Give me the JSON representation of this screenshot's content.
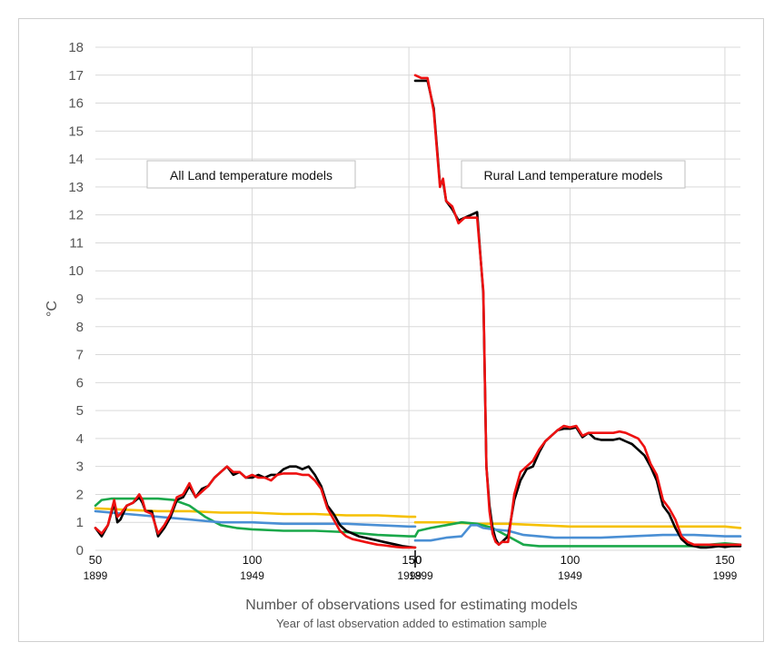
{
  "chart_data": {
    "type": "line",
    "ylabel": "°C",
    "xlabel": "Number of observations used for estimating models",
    "xlabel_secondary": "Year of last observation added to estimation sample",
    "ylim": [
      0,
      18
    ],
    "yticks": [
      0,
      1,
      2,
      3,
      4,
      5,
      6,
      7,
      8,
      9,
      10,
      11,
      12,
      13,
      14,
      15,
      16,
      17,
      18
    ],
    "grid": true,
    "legend": "none",
    "colors": {
      "black": "#000000",
      "red": "#ee1111",
      "yellow": "#f5c000",
      "green": "#1aa84a",
      "blue": "#4a8fd4",
      "grid": "#d9d9d9",
      "frame": "#d0d0d0"
    },
    "panels": [
      {
        "title": "All Land temperature models",
        "xlim": [
          50,
          152
        ],
        "xticks": [
          {
            "value": 50,
            "label": "50",
            "year": "1899"
          },
          {
            "value": 100,
            "label": "100",
            "year": "1949"
          },
          {
            "value": 150,
            "label": "150",
            "year": "1999"
          }
        ],
        "series": [
          {
            "name": "black",
            "color": "#000000",
            "x": [
              50,
              52,
              54,
              56,
              57,
              58,
              60,
              62,
              64,
              65,
              66,
              68,
              70,
              72,
              74,
              76,
              78,
              80,
              82,
              84,
              86,
              88,
              90,
              92,
              94,
              96,
              98,
              100,
              102,
              104,
              106,
              108,
              110,
              112,
              114,
              116,
              118,
              120,
              122,
              124,
              126,
              128,
              130,
              132,
              134,
              136,
              138,
              140,
              142,
              144,
              146,
              148,
              150,
              152
            ],
            "y": [
              0.8,
              0.5,
              0.9,
              1.7,
              1.0,
              1.1,
              1.6,
              1.7,
              1.9,
              1.7,
              1.4,
              1.4,
              0.5,
              0.8,
              1.2,
              1.8,
              1.9,
              2.3,
              1.9,
              2.2,
              2.3,
              2.6,
              2.8,
              3.0,
              2.7,
              2.8,
              2.6,
              2.6,
              2.7,
              2.6,
              2.7,
              2.7,
              2.9,
              3.0,
              3.0,
              2.9,
              3.0,
              2.7,
              2.3,
              1.6,
              1.3,
              0.9,
              0.7,
              0.6,
              0.5,
              0.45,
              0.4,
              0.35,
              0.3,
              0.25,
              0.2,
              0.15,
              0.12,
              0.1
            ]
          },
          {
            "name": "red",
            "color": "#ee1111",
            "x": [
              50,
              52,
              54,
              56,
              57,
              58,
              60,
              62,
              64,
              65,
              66,
              68,
              70,
              72,
              74,
              76,
              78,
              80,
              82,
              84,
              86,
              88,
              90,
              92,
              94,
              96,
              98,
              100,
              102,
              104,
              106,
              108,
              110,
              112,
              114,
              116,
              118,
              120,
              122,
              124,
              126,
              128,
              130,
              132,
              134,
              136,
              138,
              140,
              142,
              144,
              146,
              148,
              150,
              152
            ],
            "y": [
              0.8,
              0.6,
              0.9,
              1.8,
              1.2,
              1.3,
              1.6,
              1.7,
              2.0,
              1.8,
              1.4,
              1.3,
              0.6,
              0.9,
              1.3,
              1.9,
              2.0,
              2.4,
              1.9,
              2.1,
              2.3,
              2.6,
              2.8,
              3.0,
              2.8,
              2.8,
              2.6,
              2.7,
              2.6,
              2.6,
              2.5,
              2.7,
              2.75,
              2.75,
              2.75,
              2.7,
              2.7,
              2.5,
              2.2,
              1.5,
              1.1,
              0.7,
              0.5,
              0.4,
              0.35,
              0.3,
              0.25,
              0.2,
              0.18,
              0.15,
              0.12,
              0.1,
              0.1,
              0.1
            ]
          },
          {
            "name": "yellow",
            "color": "#f5c000",
            "x": [
              50,
              60,
              70,
              80,
              90,
              100,
              110,
              120,
              130,
              140,
              150,
              152
            ],
            "y": [
              1.5,
              1.45,
              1.4,
              1.4,
              1.35,
              1.35,
              1.3,
              1.3,
              1.25,
              1.25,
              1.2,
              1.2
            ]
          },
          {
            "name": "green",
            "color": "#1aa84a",
            "x": [
              50,
              52,
              55,
              60,
              65,
              70,
              75,
              80,
              85,
              90,
              95,
              100,
              110,
              120,
              130,
              140,
              150,
              152
            ],
            "y": [
              1.6,
              1.8,
              1.85,
              1.85,
              1.85,
              1.85,
              1.8,
              1.6,
              1.2,
              0.9,
              0.8,
              0.75,
              0.7,
              0.7,
              0.65,
              0.55,
              0.5,
              0.5
            ]
          },
          {
            "name": "blue",
            "color": "#4a8fd4",
            "x": [
              50,
              55,
              60,
              65,
              70,
              75,
              80,
              85,
              90,
              95,
              100,
              110,
              120,
              130,
              140,
              150,
              152
            ],
            "y": [
              1.4,
              1.35,
              1.3,
              1.25,
              1.2,
              1.15,
              1.1,
              1.05,
              1.0,
              1.0,
              1.0,
              0.95,
              0.95,
              0.95,
              0.9,
              0.85,
              0.85
            ]
          }
        ]
      },
      {
        "title": "Rural Land temperature models",
        "xlim": [
          50,
          155
        ],
        "xticks": [
          {
            "value": 50,
            "label": "50",
            "year": "1899"
          },
          {
            "value": 100,
            "label": "100",
            "year": "1949"
          },
          {
            "value": 150,
            "label": "150",
            "year": "1999"
          }
        ],
        "series": [
          {
            "name": "black",
            "color": "#000000",
            "x": [
              50,
              52,
              54,
              56,
              58,
              59,
              60,
              62,
              64,
              66,
              68,
              70,
              72,
              73,
              74,
              75,
              76,
              77,
              78,
              80,
              82,
              84,
              86,
              88,
              90,
              92,
              94,
              96,
              98,
              100,
              102,
              104,
              106,
              108,
              110,
              112,
              114,
              116,
              118,
              120,
              122,
              124,
              126,
              128,
              130,
              132,
              134,
              136,
              138,
              140,
              142,
              144,
              146,
              148,
              150,
              152,
              155
            ],
            "y": [
              16.8,
              16.8,
              16.8,
              15.8,
              13.1,
              13.2,
              12.5,
              12.2,
              11.8,
              11.9,
              12.0,
              12.1,
              9.2,
              3.0,
              1.6,
              0.8,
              0.4,
              0.2,
              0.3,
              0.5,
              1.8,
              2.5,
              2.9,
              3.0,
              3.5,
              3.9,
              4.1,
              4.3,
              4.35,
              4.35,
              4.4,
              4.05,
              4.2,
              4.0,
              3.95,
              3.95,
              3.95,
              4.0,
              3.9,
              3.8,
              3.6,
              3.4,
              3.0,
              2.5,
              1.6,
              1.3,
              0.8,
              0.4,
              0.2,
              0.15,
              0.1,
              0.1,
              0.12,
              0.15,
              0.12,
              0.15,
              0.15
            ]
          },
          {
            "name": "red",
            "color": "#ee1111",
            "x": [
              50,
              52,
              54,
              56,
              58,
              59,
              60,
              62,
              64,
              66,
              68,
              70,
              72,
              73,
              74,
              75,
              76,
              77,
              78,
              80,
              82,
              84,
              86,
              88,
              90,
              92,
              94,
              96,
              98,
              100,
              102,
              104,
              106,
              108,
              110,
              112,
              114,
              116,
              118,
              120,
              122,
              124,
              126,
              128,
              130,
              132,
              134,
              136,
              138,
              140,
              142,
              144,
              146,
              148,
              150,
              152,
              155
            ],
            "y": [
              17.0,
              16.9,
              16.9,
              15.7,
              13.0,
              13.3,
              12.5,
              12.3,
              11.7,
              11.9,
              11.9,
              11.9,
              9.3,
              3.0,
              1.4,
              0.6,
              0.3,
              0.2,
              0.3,
              0.3,
              2.0,
              2.8,
              3.0,
              3.2,
              3.6,
              3.9,
              4.1,
              4.3,
              4.45,
              4.4,
              4.45,
              4.1,
              4.2,
              4.2,
              4.2,
              4.2,
              4.2,
              4.25,
              4.2,
              4.1,
              4.0,
              3.7,
              3.1,
              2.7,
              1.8,
              1.5,
              1.1,
              0.5,
              0.3,
              0.2,
              0.2,
              0.2,
              0.2,
              0.2,
              0.2,
              0.2,
              0.2
            ]
          },
          {
            "name": "yellow",
            "color": "#f5c000",
            "x": [
              50,
              60,
              70,
              80,
              90,
              100,
              110,
              120,
              130,
              140,
              150,
              155
            ],
            "y": [
              1.0,
              1.0,
              0.95,
              0.95,
              0.9,
              0.85,
              0.85,
              0.85,
              0.85,
              0.85,
              0.85,
              0.8
            ]
          },
          {
            "name": "green",
            "color": "#1aa84a",
            "x": [
              50,
              51,
              55,
              60,
              65,
              70,
              75,
              80,
              85,
              90,
              100,
              110,
              120,
              130,
              140,
              145,
              150,
              155
            ],
            "y": [
              0.5,
              0.7,
              0.8,
              0.9,
              1.0,
              0.95,
              0.8,
              0.5,
              0.2,
              0.15,
              0.15,
              0.15,
              0.15,
              0.15,
              0.15,
              0.2,
              0.25,
              0.2
            ]
          },
          {
            "name": "blue",
            "color": "#4a8fd4",
            "x": [
              50,
              55,
              60,
              65,
              68,
              70,
              72,
              75,
              80,
              85,
              90,
              95,
              100,
              110,
              120,
              130,
              140,
              150,
              155
            ],
            "y": [
              0.35,
              0.35,
              0.45,
              0.5,
              0.9,
              0.9,
              0.8,
              0.75,
              0.7,
              0.55,
              0.5,
              0.45,
              0.45,
              0.45,
              0.5,
              0.55,
              0.55,
              0.5,
              0.5
            ]
          }
        ]
      }
    ]
  }
}
